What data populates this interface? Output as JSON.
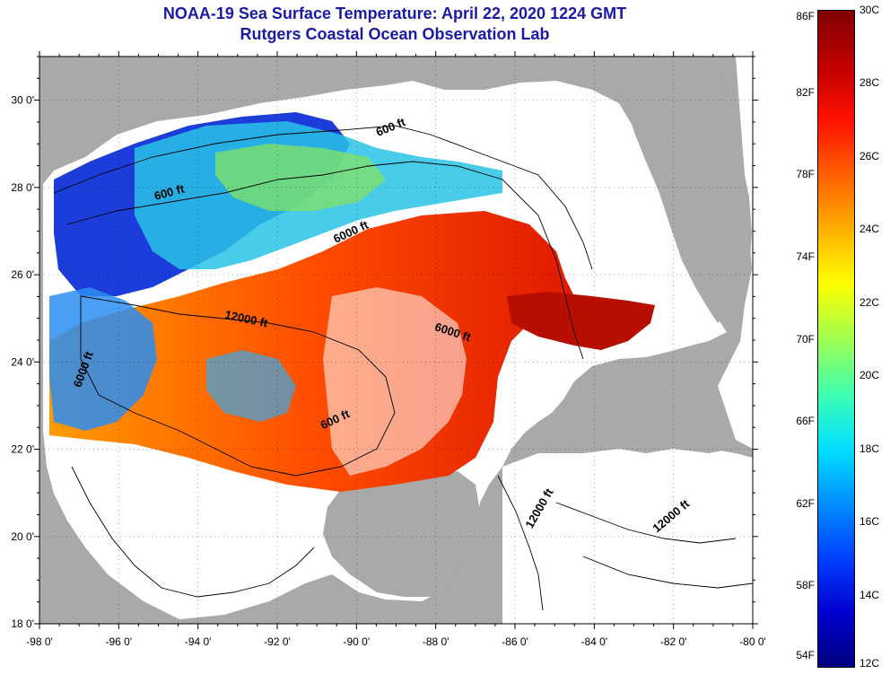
{
  "header": {
    "title": "NOAA-19 Sea Surface Temperature:  April 22, 2020 1224 GMT",
    "subtitle": "Rutgers Coastal Ocean Observation Lab"
  },
  "axes": {
    "lat_labels": [
      {
        "lat": 30,
        "text": "30 0'"
      },
      {
        "lat": 28,
        "text": "28 0'"
      },
      {
        "lat": 26,
        "text": "26 0'"
      },
      {
        "lat": 24,
        "text": "24 0'"
      },
      {
        "lat": 22,
        "text": "22 0'"
      },
      {
        "lat": 20,
        "text": "20 0'"
      },
      {
        "lat": 18,
        "text": "18 0'"
      }
    ],
    "lon_labels": [
      {
        "lon": -98,
        "text": "-98 0'"
      },
      {
        "lon": -96,
        "text": "-96 0'"
      },
      {
        "lon": -94,
        "text": "-94 0'"
      },
      {
        "lon": -92,
        "text": "-92 0'"
      },
      {
        "lon": -90,
        "text": "-90 0'"
      },
      {
        "lon": -88,
        "text": "-88 0'"
      },
      {
        "lon": -86,
        "text": "-86 0'"
      },
      {
        "lon": -84,
        "text": "-84 0'"
      },
      {
        "lon": -82,
        "text": "-82 0'"
      },
      {
        "lon": -80,
        "text": "-80 0'"
      }
    ]
  },
  "contour_labels": [
    {
      "text": "600 ft",
      "lon": -89.1,
      "lat": 29.3
    },
    {
      "text": "600 ft",
      "lon": -94.7,
      "lat": 27.8
    },
    {
      "text": "6000 ft",
      "lon": -90.1,
      "lat": 26.9
    },
    {
      "text": "12000 ft",
      "lon": -92.8,
      "lat": 24.9
    },
    {
      "text": "6000 ft",
      "lon": -87.6,
      "lat": 24.6
    },
    {
      "text": "6000 ft",
      "lon": -96.8,
      "lat": 23.8
    },
    {
      "text": "600 ft",
      "lon": -90.5,
      "lat": 22.6
    },
    {
      "text": "12000 ft",
      "lon": -85.3,
      "lat": 20.6
    },
    {
      "text": "12000 ft",
      "lon": -82.0,
      "lat": 20.4
    }
  ],
  "colorbar": {
    "fahrenheit": [
      "86F",
      "82F",
      "78F",
      "74F",
      "70F",
      "66F",
      "62F",
      "58F",
      "54F"
    ],
    "celsius": [
      "30C",
      "28C",
      "26C",
      "24C",
      "22C",
      "20C",
      "18C",
      "16C",
      "14C",
      "12C"
    ],
    "colors": [
      "#00007f",
      "#0000d0",
      "#0040ff",
      "#0090ff",
      "#00e0ff",
      "#40ffb0",
      "#a0ff50",
      "#ffff00",
      "#ffb000",
      "#ff6000",
      "#ff1000",
      "#c00000",
      "#7f0000"
    ]
  },
  "colors": {
    "land": "#a9a9a9",
    "no_data": "#ffffff",
    "title": "#1a1aa6"
  }
}
